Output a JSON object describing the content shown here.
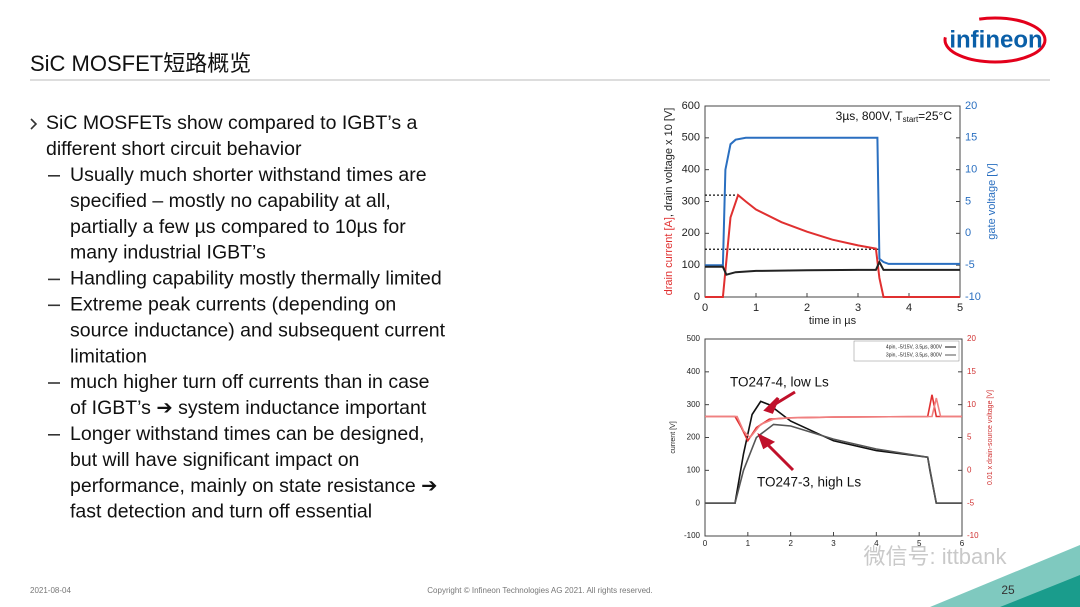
{
  "slide": {
    "title": "SiC MOSFET短路概览",
    "logo": "infineon",
    "date": "2021-08-04",
    "copyright": "Copyright © Infineon Technologies AG 2021. All rights reserved.",
    "page": "25",
    "watermark": "微信号: ittbank"
  },
  "bullets": [
    {
      "level": 1,
      "lines": [
        "SiC MOSFETs show compared to IGBT’s a",
        "different short circuit behavior"
      ]
    },
    {
      "level": 2,
      "lines": [
        "Usually much shorter withstand times are",
        "specified – mostly no capability at all,",
        "partially a few µs compared to 10µs for",
        "many industrial IGBT’s"
      ]
    },
    {
      "level": 2,
      "lines": [
        "Handling capability mostly thermally limited"
      ]
    },
    {
      "level": 2,
      "lines": [
        "Extreme peak currents (depending on",
        "source inductance) and subsequent current",
        "limitation"
      ]
    },
    {
      "level": 2,
      "lines": [
        "much higher turn off currents than in case",
        "of IGBT’s ➔ system inductance important"
      ]
    },
    {
      "level": 2,
      "lines": [
        "Longer withstand times can be designed,",
        "but will have significant impact on",
        "performance, mainly on state resistance ➔",
        "fast detection and turn off essential"
      ]
    }
  ],
  "charts": [
    {
      "type": "line",
      "xlabel": "time in µs",
      "ylabel": [
        "drain current [A]",
        ", drain voltage x 10 [V]"
      ],
      "ylabel_colors": [
        "#e03030",
        "#222222"
      ],
      "y2label": "gate voltage [V]",
      "y2_color": "#2a6fc0",
      "annotation": {
        "main": "3µs, 800V, T",
        "sub": "start",
        "tail": "=25°C"
      },
      "xlim": [
        0,
        5
      ],
      "xticks": [
        0,
        1,
        2,
        3,
        4,
        5
      ],
      "ylim": [
        0,
        600
      ],
      "yticks": [
        0,
        100,
        200,
        300,
        400,
        500,
        600
      ],
      "y2lim": [
        -10,
        20
      ],
      "y2ticks": [
        -10,
        -5,
        0,
        5,
        10,
        15,
        20
      ],
      "ref_lines": [
        {
          "y": 320,
          "x_end": 0.65
        },
        {
          "y": 150,
          "x_end": 3.4
        }
      ],
      "series": [
        {
          "color": "#2a6fc0",
          "axis": "y2",
          "x": [
            0,
            0.35,
            0.4,
            0.5,
            0.6,
            0.8,
            1,
            2,
            3,
            3.38,
            3.42,
            3.5,
            3.6,
            4,
            5
          ],
          "values": [
            -5,
            -5,
            10,
            14,
            14.7,
            15,
            15,
            15,
            15,
            15,
            -4,
            -4.5,
            -4.8,
            -4.8,
            -4.8
          ]
        },
        {
          "color": "#e03030",
          "x": [
            0,
            0.35,
            0.5,
            0.65,
            0.8,
            1,
            1.5,
            2,
            2.5,
            3,
            3.35,
            3.42,
            3.5,
            5
          ],
          "values": [
            0,
            0,
            250,
            320,
            300,
            275,
            235,
            205,
            180,
            162,
            152,
            60,
            0,
            0
          ]
        },
        {
          "color": "#222222",
          "x": [
            0,
            0.35,
            0.42,
            0.6,
            1,
            2,
            3,
            3.35,
            3.42,
            3.5,
            5
          ],
          "values": [
            95,
            95,
            70,
            78,
            82,
            84,
            85,
            85,
            110,
            85,
            85
          ]
        }
      ]
    },
    {
      "type": "line",
      "ylabel": [
        "current [V]"
      ],
      "ylabel_colors": [
        "#222222"
      ],
      "y2label": "0.01 x drain-source voltage [V]",
      "y2_color": "#d03030",
      "annotations": [
        "TO247-4, low Ls",
        "TO247-3, high Ls"
      ],
      "xlim": [
        0,
        6
      ],
      "xticks": [
        0,
        1,
        2,
        3,
        4,
        5,
        6
      ],
      "ylim": [
        -100,
        500
      ],
      "yticks": [
        -100,
        0,
        100,
        200,
        300,
        400,
        500
      ],
      "y2lim": [
        -10,
        20
      ],
      "y2ticks": [
        -10,
        -5,
        0,
        5,
        10,
        15,
        20
      ],
      "series": [
        {
          "name": "4pin, -5/15V, 3.5µs, 800V",
          "color": "#111111",
          "x": [
            0,
            0.7,
            0.9,
            1.1,
            1.3,
            1.5,
            2,
            3,
            4,
            5.2,
            5.25,
            5.4,
            6
          ],
          "values": [
            0,
            0,
            150,
            270,
            310,
            300,
            250,
            190,
            160,
            140,
            100,
            0,
            0
          ]
        },
        {
          "name": "3pin, -5/15V, 3.5µs, 800V",
          "color": "#555555",
          "x": [
            0,
            0.7,
            0.9,
            1.2,
            1.6,
            2,
            3,
            4,
            5.2,
            5.4,
            6
          ],
          "values": [
            0,
            0,
            100,
            200,
            240,
            235,
            195,
            165,
            140,
            0,
            0
          ]
        },
        {
          "color": "#e03030",
          "axis": "y2",
          "x": [
            0,
            0.7,
            0.85,
            1,
            1.2,
            1.5,
            2,
            3,
            5.2,
            5.3,
            5.4,
            5.5,
            6
          ],
          "values": [
            8.2,
            8.2,
            6.5,
            4.5,
            6.5,
            7.8,
            8,
            8.1,
            8.2,
            11.5,
            8.2,
            8.2,
            8.2
          ]
        },
        {
          "color": "#f08080",
          "axis": "y2",
          "x": [
            0,
            0.75,
            0.9,
            1.05,
            1.3,
            1.6,
            2,
            3,
            5.3,
            5.4,
            5.5,
            6
          ],
          "values": [
            8.2,
            8.2,
            6,
            5,
            7,
            7.8,
            8,
            8.1,
            8.2,
            11,
            8.2,
            8.2
          ]
        }
      ]
    }
  ]
}
